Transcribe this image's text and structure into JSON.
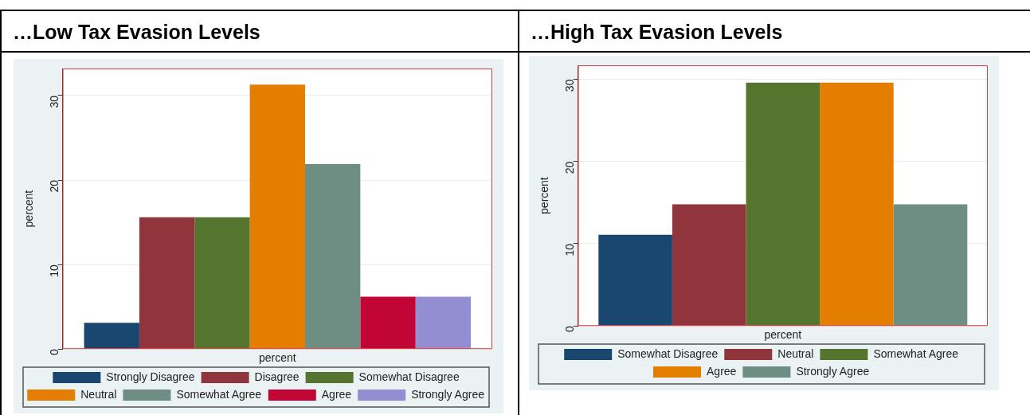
{
  "chart_data": [
    {
      "type": "bar",
      "title": "…Low Tax Evasion Levels",
      "xlabel": "percent",
      "ylabel": "percent",
      "categories": [
        null
      ],
      "ylim": [
        0,
        33.2
      ],
      "yticks": [
        0,
        10,
        20,
        30
      ],
      "grid": "y",
      "legend": "bottom",
      "series": [
        {
          "name": "Strongly Disagree",
          "color": "#1a476f",
          "values": [
            3.1
          ]
        },
        {
          "name": "Disagree",
          "color": "#90353b",
          "values": [
            15.6
          ]
        },
        {
          "name": "Somewhat Disagree",
          "color": "#55752f",
          "values": [
            15.6
          ]
        },
        {
          "name": "Neutral",
          "color": "#e37e00",
          "values": [
            31.3
          ]
        },
        {
          "name": "Somewhat Agree",
          "color": "#6e8e84",
          "values": [
            21.9
          ]
        },
        {
          "name": "Agree",
          "color": "#c10534",
          "values": [
            6.2
          ]
        },
        {
          "name": "Strongly Agree",
          "color": "#938dd2",
          "values": [
            6.2
          ]
        }
      ]
    },
    {
      "type": "bar",
      "title": "…High Tax Evasion Levels",
      "xlabel": "percent",
      "ylabel": "percent",
      "categories": [
        null
      ],
      "ylim": [
        0,
        31.7
      ],
      "yticks": [
        0,
        10,
        20,
        30
      ],
      "grid": "y",
      "legend": "bottom",
      "series": [
        {
          "name": "Somewhat Disagree",
          "color": "#1a476f",
          "values": [
            11.1
          ]
        },
        {
          "name": "Neutral",
          "color": "#90353b",
          "values": [
            14.8
          ]
        },
        {
          "name": "Somewhat Agree",
          "color": "#55752f",
          "values": [
            29.6
          ]
        },
        {
          "name": "Agree",
          "color": "#e37e00",
          "values": [
            29.6
          ]
        },
        {
          "name": "Strongly Agree",
          "color": "#6e8e84",
          "values": [
            14.8
          ]
        }
      ]
    }
  ]
}
